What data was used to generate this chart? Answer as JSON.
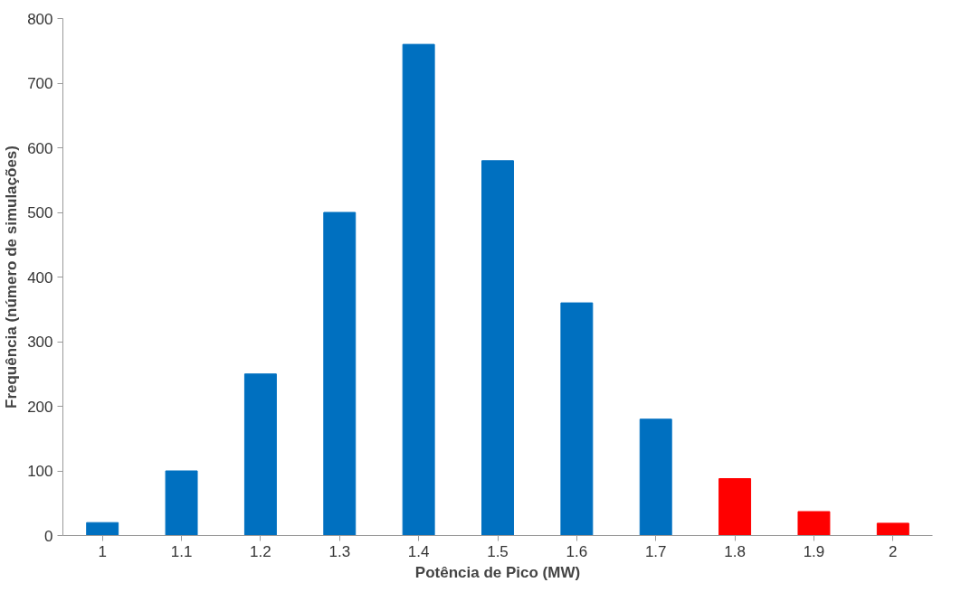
{
  "chart_data": {
    "type": "bar",
    "xlabel": "Potência de Pico (MW)",
    "ylabel": "Frequência (número de simulações)",
    "categories": [
      "1",
      "1.1",
      "1.2",
      "1.3",
      "1.4",
      "1.5",
      "1.6",
      "1.7",
      "1.8",
      "1.9",
      "2"
    ],
    "values": [
      20,
      100,
      250,
      500,
      760,
      580,
      360,
      180,
      88,
      37,
      19
    ],
    "colors": [
      "#0070c0",
      "#0070c0",
      "#0070c0",
      "#0070c0",
      "#0070c0",
      "#0070c0",
      "#0070c0",
      "#0070c0",
      "#ff0000",
      "#ff0000",
      "#ff0000"
    ],
    "ylim": [
      0,
      800
    ],
    "yticks": [
      0,
      100,
      200,
      300,
      400,
      500,
      600,
      700,
      800
    ],
    "grid": false
  }
}
